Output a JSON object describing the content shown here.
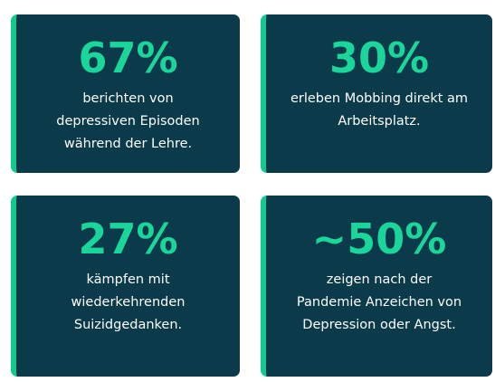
{
  "cards": [
    {
      "stat": "67%",
      "text": "berichten von depressiven Episoden während der Lehre."
    },
    {
      "stat": "30%",
      "text": "erleben Mobbing direkt am Arbeitsplatz."
    },
    {
      "stat": "27%",
      "text": "kämpfen mit wiederkehrenden Suizidgedanken."
    },
    {
      "stat": "~50%",
      "text": "zeigen nach der Pandemie Anzeichen von Depression oder Angst."
    }
  ],
  "colors": {
    "card_background": "#0b3a4a",
    "accent": "#1ad69a",
    "text": "#ffffff"
  }
}
